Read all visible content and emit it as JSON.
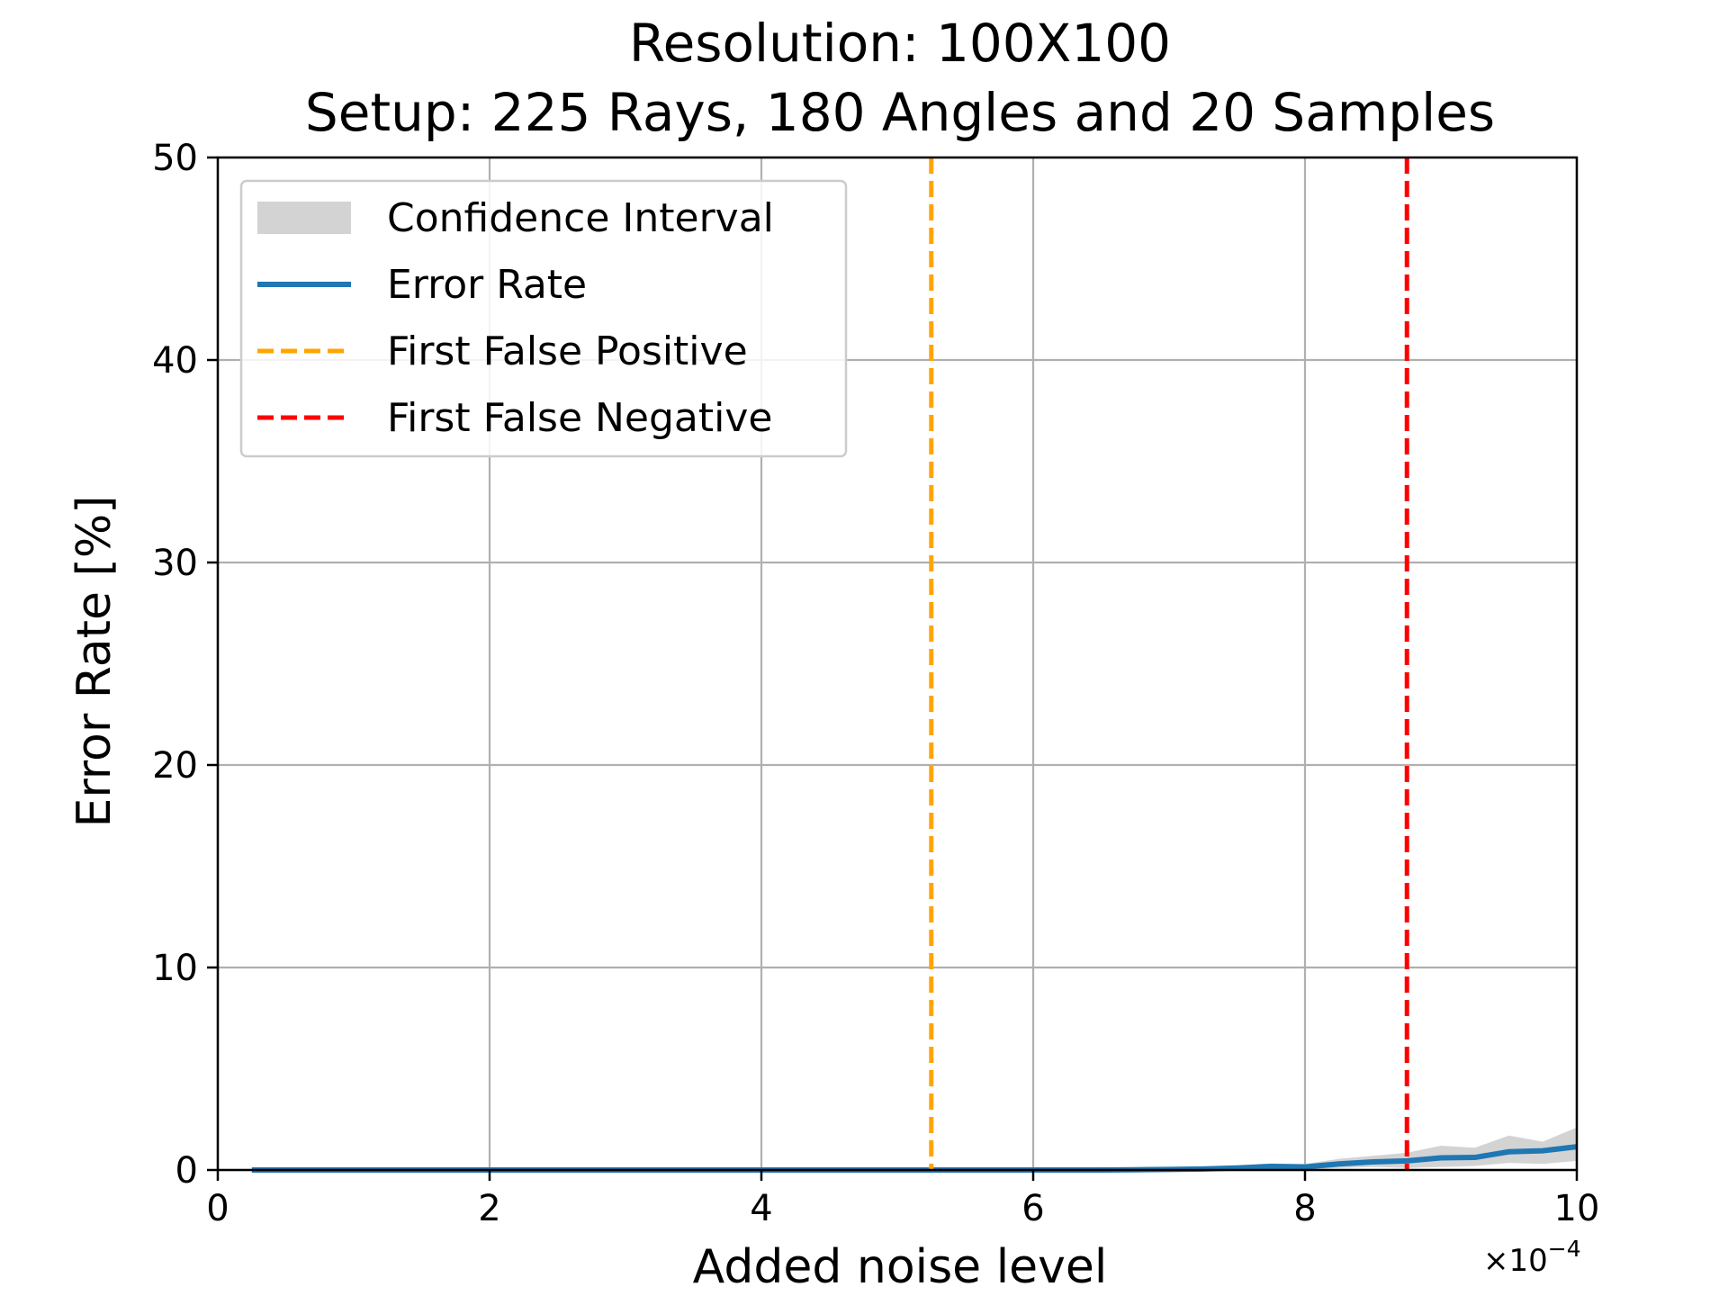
{
  "chart_data": {
    "type": "line",
    "title_lines": [
      "Resolution: 100X100",
      "Setup: 225 Rays, 180 Angles and 20 Samples"
    ],
    "xlabel": "Added noise level",
    "ylabel": "Error Rate [%]",
    "x_scale_label": "×10",
    "x_scale_exponent": "−4",
    "xlim": [
      0,
      10
    ],
    "ylim": [
      0,
      50
    ],
    "x_ticks": [
      0,
      2,
      4,
      6,
      8,
      10
    ],
    "y_ticks": [
      0,
      10,
      20,
      30,
      40,
      50
    ],
    "x_tick_labels": [
      "0",
      "2",
      "4",
      "6",
      "8",
      "10"
    ],
    "y_tick_labels": [
      "0",
      "10",
      "20",
      "30",
      "40",
      "50"
    ],
    "grid": true,
    "legend_position": "top-left",
    "legend": [
      {
        "label": "Confidence Interval",
        "kind": "patch",
        "color": "#d3d3d3"
      },
      {
        "label": "Error Rate",
        "kind": "line",
        "color": "#1f77b4"
      },
      {
        "label": "First False Positive",
        "kind": "dashed",
        "color": "#ffa500"
      },
      {
        "label": "First False Negative",
        "kind": "dashed",
        "color": "#ff0000"
      }
    ],
    "series": [
      {
        "name": "Error Rate",
        "color": "#1f77b4",
        "x": [
          0.25,
          0.5,
          0.75,
          1.0,
          1.25,
          1.5,
          1.75,
          2.0,
          2.25,
          2.5,
          2.75,
          3.0,
          3.25,
          3.5,
          3.75,
          4.0,
          4.25,
          4.5,
          4.75,
          5.0,
          5.25,
          5.5,
          5.75,
          6.0,
          6.25,
          6.5,
          6.75,
          7.0,
          7.25,
          7.5,
          7.75,
          8.0,
          8.25,
          8.5,
          8.75,
          9.0,
          9.25,
          9.5,
          9.75,
          10.0
        ],
        "y": [
          0,
          0,
          0,
          0,
          0,
          0,
          0,
          0,
          0,
          0,
          0,
          0,
          0,
          0,
          0,
          0,
          0,
          0,
          0,
          0,
          0,
          0,
          0,
          0,
          0,
          0,
          0.01,
          0.03,
          0.05,
          0.1,
          0.18,
          0.15,
          0.3,
          0.4,
          0.45,
          0.6,
          0.62,
          0.9,
          0.95,
          1.15
        ]
      }
    ],
    "confidence_interval": {
      "color": "#d3d3d3",
      "x": [
        0.25,
        0.5,
        0.75,
        1.0,
        1.25,
        1.5,
        1.75,
        2.0,
        2.25,
        2.5,
        2.75,
        3.0,
        3.25,
        3.5,
        3.75,
        4.0,
        4.25,
        4.5,
        4.75,
        5.0,
        5.25,
        5.5,
        5.75,
        6.0,
        6.25,
        6.5,
        6.75,
        7.0,
        7.25,
        7.5,
        7.75,
        8.0,
        8.25,
        8.5,
        8.75,
        9.0,
        9.25,
        9.5,
        9.75,
        10.0
      ],
      "lower": [
        0,
        0,
        0,
        0,
        0,
        0,
        0,
        0,
        0,
        0,
        0,
        0,
        0,
        0,
        0,
        0,
        0,
        0,
        0,
        0,
        0,
        0,
        0,
        0,
        0,
        0,
        0,
        0,
        0,
        0.02,
        0.05,
        0.02,
        0.1,
        0.15,
        0.1,
        0.15,
        0.2,
        0.35,
        0.3,
        0.45
      ],
      "upper": [
        0,
        0,
        0,
        0,
        0,
        0,
        0,
        0,
        0,
        0,
        0,
        0,
        0,
        0,
        0,
        0,
        0,
        0,
        0,
        0,
        0,
        0,
        0,
        0,
        0,
        0,
        0.03,
        0.08,
        0.12,
        0.2,
        0.32,
        0.3,
        0.55,
        0.7,
        0.85,
        1.2,
        1.1,
        1.7,
        1.4,
        2.1
      ]
    },
    "vertical_lines": [
      {
        "name": "First False Positive",
        "x": 5.25,
        "color": "#ffa500",
        "style": "dashed"
      },
      {
        "name": "First False Negative",
        "x": 8.75,
        "color": "#ff0000",
        "style": "dashed"
      }
    ]
  }
}
